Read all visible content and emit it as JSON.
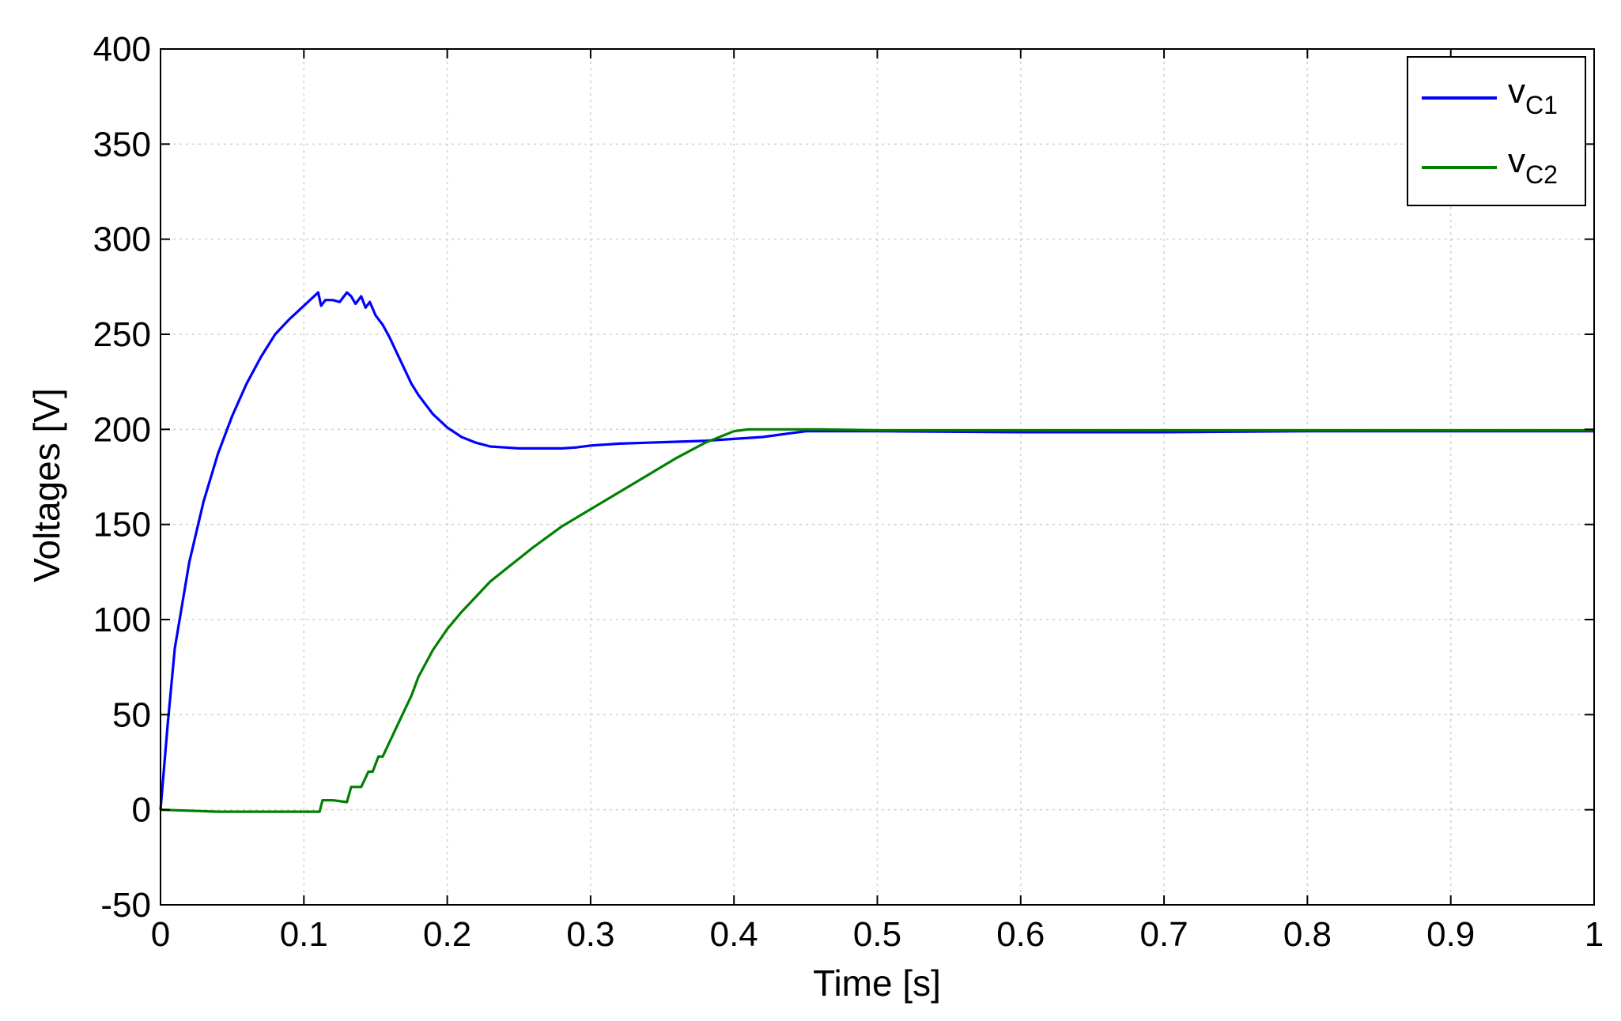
{
  "chart_data": {
    "type": "line",
    "title": "",
    "xlabel": "Time [s]",
    "ylabel": "Voltages [V]",
    "xlim": [
      0,
      1
    ],
    "ylim": [
      -50,
      400
    ],
    "x_ticks": [
      "0",
      "0.1",
      "0.2",
      "0.3",
      "0.4",
      "0.5",
      "0.6",
      "0.7",
      "0.8",
      "0.9",
      "1"
    ],
    "y_ticks": [
      "-50",
      "0",
      "50",
      "100",
      "150",
      "200",
      "250",
      "300",
      "350",
      "400"
    ],
    "grid": true,
    "legend_position": "top-right",
    "series": [
      {
        "name": "vC1",
        "name_main": "v",
        "name_sub": "C1",
        "color": "#0000ff",
        "x": [
          0,
          0.005,
          0.01,
          0.02,
          0.03,
          0.04,
          0.05,
          0.06,
          0.07,
          0.08,
          0.09,
          0.1,
          0.11,
          0.112,
          0.115,
          0.12,
          0.125,
          0.13,
          0.133,
          0.136,
          0.14,
          0.143,
          0.146,
          0.15,
          0.155,
          0.16,
          0.165,
          0.17,
          0.175,
          0.18,
          0.19,
          0.2,
          0.21,
          0.22,
          0.23,
          0.24,
          0.25,
          0.26,
          0.27,
          0.28,
          0.29,
          0.3,
          0.32,
          0.34,
          0.36,
          0.38,
          0.4,
          0.42,
          0.44,
          0.45,
          0.5,
          0.6,
          0.7,
          0.8,
          0.9,
          1.0
        ],
        "y": [
          0,
          45,
          85,
          130,
          162,
          187,
          207,
          224,
          238,
          250,
          258,
          265,
          272,
          265,
          268,
          268,
          267,
          272,
          270,
          266,
          270,
          264,
          267,
          260,
          255,
          248,
          240,
          232,
          224,
          218,
          208,
          201,
          196,
          193,
          191,
          190.5,
          190,
          190,
          190,
          190,
          190.5,
          191.5,
          192.5,
          193,
          193.5,
          194,
          195,
          196,
          198,
          199,
          199,
          198.5,
          198.5,
          199,
          199,
          199
        ]
      },
      {
        "name": "vC2",
        "name_main": "v",
        "name_sub": "C2",
        "color": "#008000",
        "x": [
          0,
          0.02,
          0.04,
          0.06,
          0.08,
          0.1,
          0.111,
          0.113,
          0.12,
          0.13,
          0.133,
          0.14,
          0.145,
          0.148,
          0.152,
          0.155,
          0.16,
          0.165,
          0.17,
          0.175,
          0.18,
          0.19,
          0.2,
          0.21,
          0.22,
          0.23,
          0.24,
          0.26,
          0.28,
          0.3,
          0.32,
          0.34,
          0.36,
          0.38,
          0.4,
          0.41,
          0.415,
          0.42,
          0.44,
          0.46,
          0.5,
          0.6,
          0.7,
          0.8,
          0.9,
          1.0
        ],
        "y": [
          0,
          -0.5,
          -1,
          -1,
          -1,
          -1,
          -1,
          5,
          5,
          4,
          12,
          12,
          20,
          20,
          28,
          28,
          36,
          44,
          52,
          60,
          70,
          84,
          95,
          104,
          112,
          120,
          126,
          138,
          149,
          158,
          167,
          176,
          185,
          193,
          199,
          200,
          200,
          200,
          200,
          200,
          199.5,
          199.5,
          199.5,
          199.5,
          199.5,
          199.5
        ]
      }
    ]
  }
}
